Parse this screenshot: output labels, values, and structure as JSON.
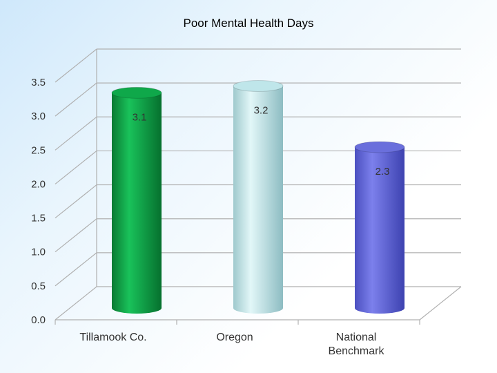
{
  "chart_data": {
    "type": "bar",
    "title": "Poor Mental Health Days",
    "categories": [
      "Tillamook Co.",
      "Oregon",
      "National Benchmark"
    ],
    "category_lines": [
      [
        "Tillamook Co."
      ],
      [
        "Oregon"
      ],
      [
        "National",
        "Benchmark"
      ]
    ],
    "values": [
      3.1,
      3.2,
      2.3
    ],
    "data_labels": [
      "3.1",
      "3.2",
      "2.3"
    ],
    "bar_colors": [
      "#0fa84a",
      "#bfe6ea",
      "#6a6fdc"
    ],
    "ylim": [
      0,
      3.5
    ],
    "yticks": [
      "0.0",
      "0.5",
      "1.0",
      "1.5",
      "2.0",
      "2.5",
      "3.0",
      "3.5"
    ],
    "xlabel": "",
    "ylabel": "",
    "grid": true,
    "legend": "none"
  }
}
